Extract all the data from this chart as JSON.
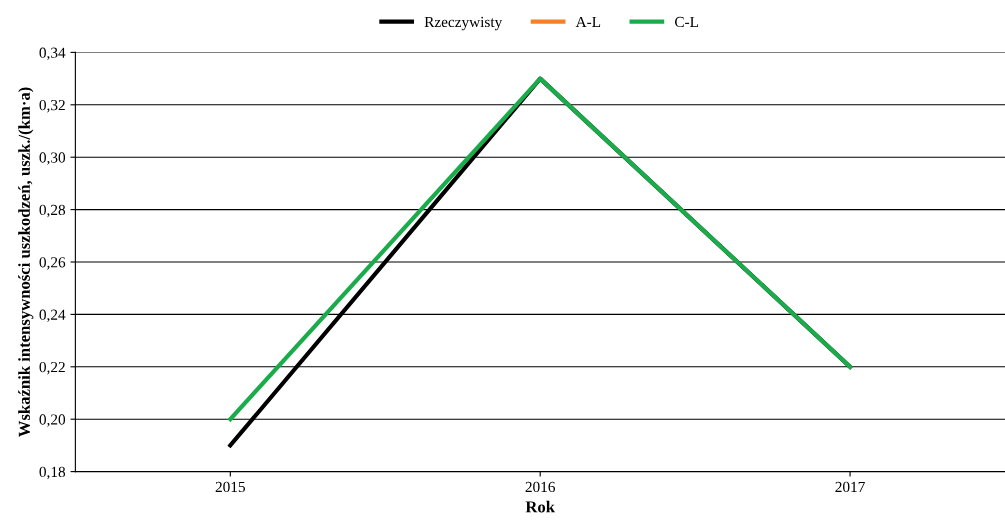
{
  "chart_data": {
    "type": "line",
    "xlabel": "Rok",
    "ylabel": "Wskaźnik intensywności uszkodzeń, uszk./(km·a)",
    "categories": [
      "2015",
      "2016",
      "2017"
    ],
    "series": [
      {
        "name": "Rzeczywisty",
        "color": "#000000",
        "values": [
          0.19,
          0.33,
          0.22
        ]
      },
      {
        "name": "A-L",
        "color": "#f58025",
        "values": [
          null,
          null,
          null
        ]
      },
      {
        "name": "C-L",
        "color": "#1aab4b",
        "values": [
          0.2,
          0.33,
          0.22
        ]
      }
    ],
    "ylim": [
      0.18,
      0.34
    ],
    "yticks": [
      {
        "value": 0.18,
        "label": "0,18"
      },
      {
        "value": 0.2,
        "label": "0,20"
      },
      {
        "value": 0.22,
        "label": "0,22"
      },
      {
        "value": 0.24,
        "label": "0,24"
      },
      {
        "value": 0.26,
        "label": "0,26"
      },
      {
        "value": 0.28,
        "label": "0,28"
      },
      {
        "value": 0.3,
        "label": "0,30"
      },
      {
        "value": 0.32,
        "label": "0,32"
      },
      {
        "value": 0.34,
        "label": "0,34"
      }
    ],
    "grid": "y",
    "legend": "top",
    "marker": "none",
    "line_style": "solid"
  }
}
